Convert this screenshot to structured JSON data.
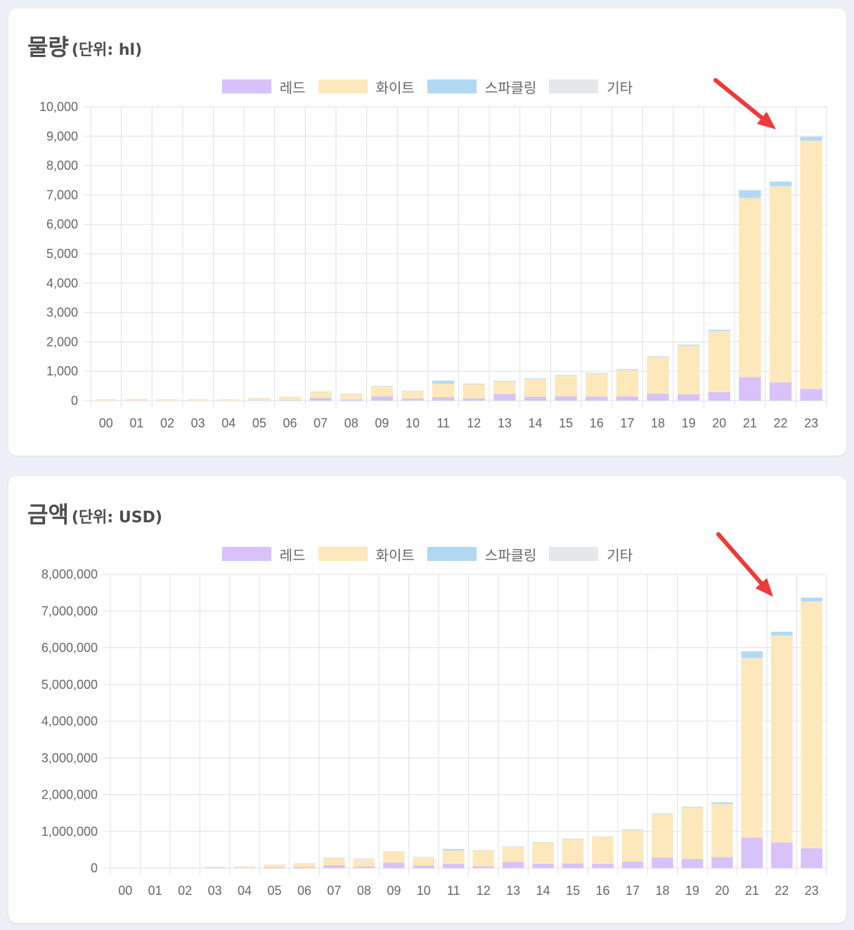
{
  "colors": {
    "red": "#d7c2fa",
    "white": "#fde8bc",
    "sparkling": "#b1d9f5",
    "other": "#e6e7ea",
    "grid": "#e0e0e0",
    "arrow": "#ee3a3a"
  },
  "legend": [
    {
      "key": "red",
      "label": "레드"
    },
    {
      "key": "white",
      "label": "화이트"
    },
    {
      "key": "sparkling",
      "label": "스파클링"
    },
    {
      "key": "other",
      "label": "기타"
    }
  ],
  "charts": [
    {
      "title": "물량",
      "unit": "(단위: hl)",
      "chart_data": {
        "type": "bar",
        "stacked": true,
        "categories": [
          "00",
          "01",
          "02",
          "03",
          "04",
          "05",
          "06",
          "07",
          "08",
          "09",
          "10",
          "11",
          "12",
          "13",
          "14",
          "15",
          "16",
          "17",
          "18",
          "19",
          "20",
          "21",
          "22",
          "23"
        ],
        "series": [
          {
            "name": "레드",
            "values": [
              5,
              8,
              5,
              5,
              5,
              15,
              20,
              90,
              40,
              150,
              70,
              120,
              80,
              230,
              130,
              150,
              140,
              150,
              240,
              220,
              290,
              800,
              620,
              400
            ]
          },
          {
            "name": "화이트",
            "values": [
              40,
              50,
              40,
              45,
              40,
              75,
              110,
              210,
              190,
              330,
              260,
              460,
              480,
              420,
              610,
              690,
              780,
              890,
              1250,
              1650,
              2080,
              6100,
              6680,
              8450
            ]
          },
          {
            "name": "스파클링",
            "values": [
              2,
              2,
              2,
              2,
              2,
              5,
              5,
              10,
              10,
              15,
              10,
              100,
              20,
              20,
              20,
              25,
              20,
              30,
              20,
              30,
              40,
              260,
              150,
              130
            ]
          },
          {
            "name": "기타",
            "values": [
              1,
              1,
              1,
              1,
              1,
              2,
              2,
              3,
              3,
              5,
              3,
              5,
              5,
              5,
              5,
              5,
              5,
              10,
              5,
              10,
              10,
              20,
              20,
              20
            ]
          }
        ],
        "ylim": [
          0,
          10000
        ],
        "yticks": [
          0,
          1000,
          2000,
          3000,
          4000,
          5000,
          6000,
          7000,
          8000,
          9000,
          10000
        ],
        "ytick_labels": [
          "0",
          "1,000",
          "2,000",
          "3,000",
          "4,000",
          "5,000",
          "6,000",
          "7,000",
          "8,000",
          "9,000",
          "10,000"
        ],
        "grid": true,
        "legend_position": "top-center"
      }
    },
    {
      "title": "금액",
      "unit": "(단위: USD)",
      "chart_data": {
        "type": "bar",
        "stacked": true,
        "categories": [
          "00",
          "01",
          "02",
          "03",
          "04",
          "05",
          "06",
          "07",
          "08",
          "09",
          "10",
          "11",
          "12",
          "13",
          "14",
          "15",
          "16",
          "17",
          "18",
          "19",
          "20",
          "21",
          "22",
          "23"
        ],
        "series": [
          {
            "name": "레드",
            "values": [
              2000,
              5000,
              5000,
              10000,
              10000,
              20000,
              30000,
              80000,
              40000,
              150000,
              70000,
              120000,
              50000,
              170000,
              120000,
              130000,
              120000,
              180000,
              290000,
              250000,
              300000,
              830000,
              700000,
              540000
            ]
          },
          {
            "name": "화이트",
            "values": [
              5000,
              15000,
              15000,
              25000,
              35000,
              75000,
              100000,
              200000,
              210000,
              290000,
              230000,
              360000,
              430000,
              410000,
              580000,
              650000,
              730000,
              850000,
              1180000,
              1400000,
              1450000,
              4890000,
              5630000,
              6720000
            ]
          },
          {
            "name": "스파클링",
            "values": [
              1000,
              1000,
              1000,
              2000,
              2000,
              3000,
              5000,
              8000,
              8000,
              10000,
              8000,
              40000,
              10000,
              10000,
              10000,
              15000,
              10000,
              20000,
              15000,
              20000,
              40000,
              180000,
              100000,
              100000
            ]
          },
          {
            "name": "기타",
            "values": [
              500,
              500,
              500,
              500,
              500,
              1000,
              1000,
              2000,
              2000,
              3000,
              2000,
              3000,
              3000,
              3000,
              3000,
              3000,
              3000,
              5000,
              3000,
              5000,
              5000,
              10000,
              10000,
              10000
            ]
          }
        ],
        "ylim": [
          0,
          8000000
        ],
        "yticks": [
          0,
          1000000,
          2000000,
          3000000,
          4000000,
          5000000,
          6000000,
          7000000,
          8000000
        ],
        "ytick_labels": [
          "0",
          "1,000,000",
          "2,000,000",
          "3,000,000",
          "4,000,000",
          "5,000,000",
          "6,000,000",
          "7,000,000",
          "8,000,000"
        ],
        "grid": true,
        "legend_position": "top-center"
      }
    }
  ]
}
